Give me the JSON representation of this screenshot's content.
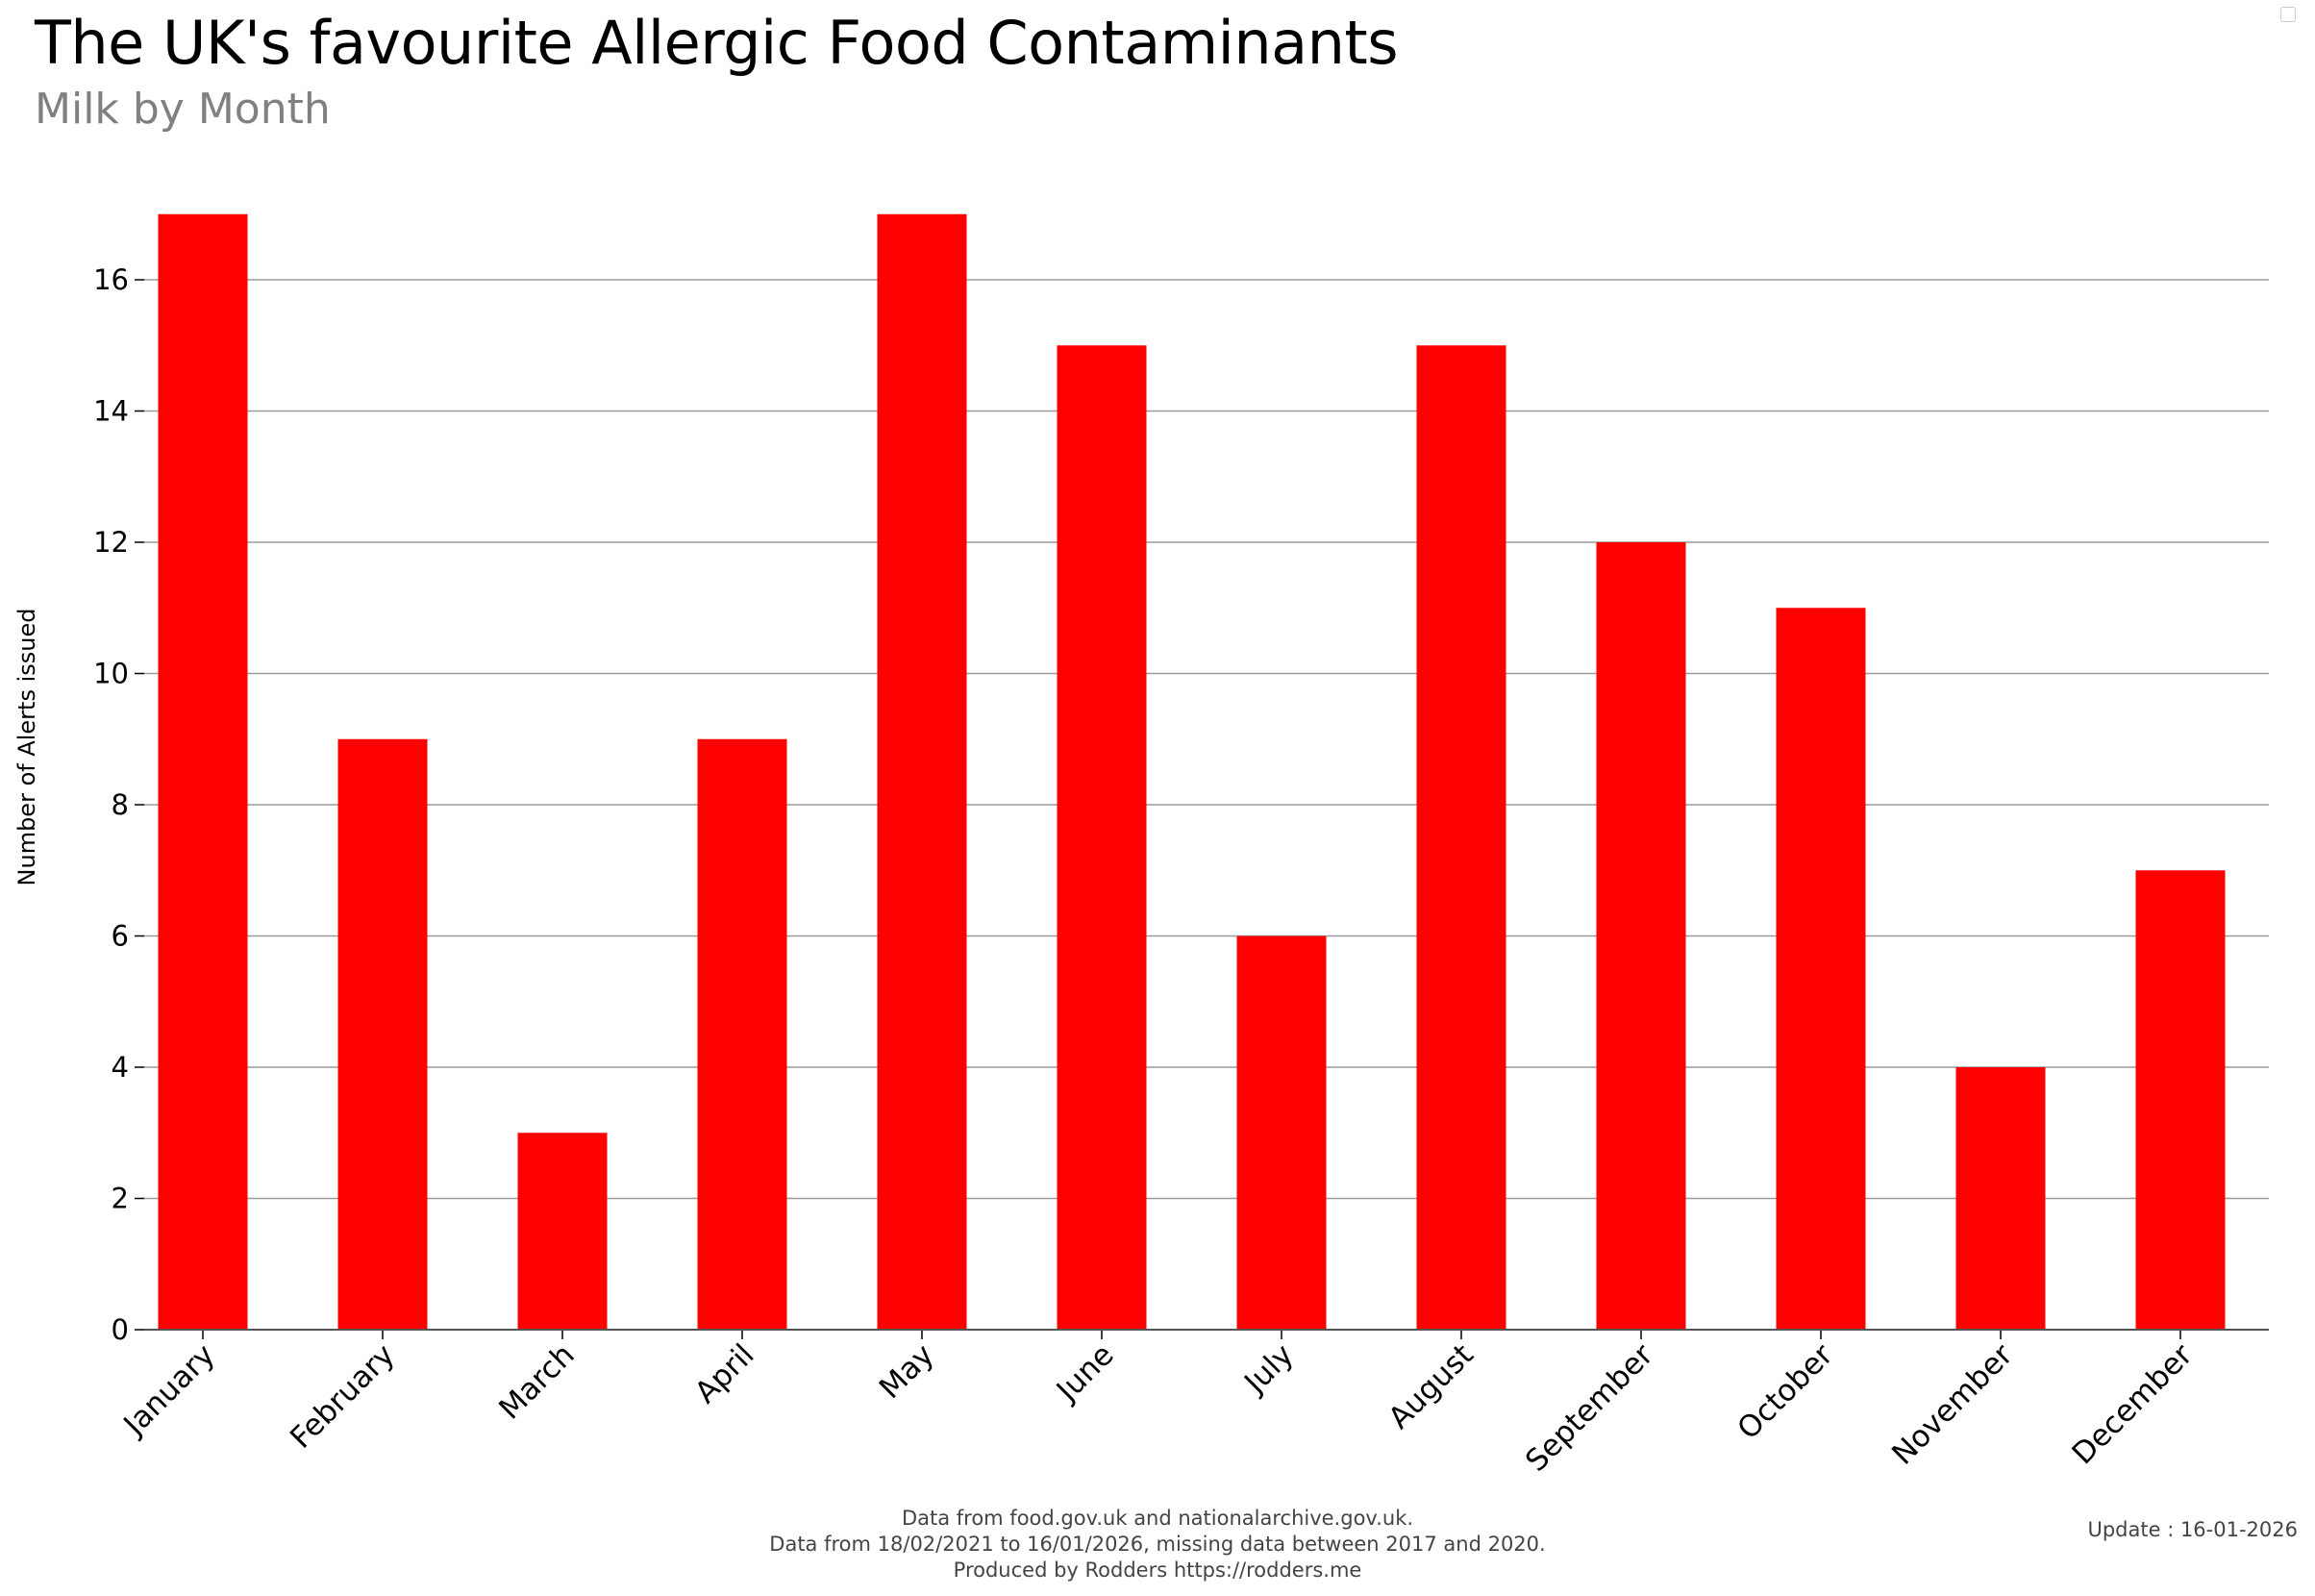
{
  "title": "The UK's favourite Allergic Food Contaminants",
  "subtitle": "Milk by Month",
  "footer": {
    "line1": "Data from food.gov.uk and nationalarchive.gov.uk.",
    "line2": "Data from 18/02/2021 to 16/01/2026, missing data between 2017 and 2020.",
    "line3": "Produced by Rodders https://rodders.me"
  },
  "update": "Update : 16-01-2026",
  "chart_data": {
    "type": "bar",
    "categories": [
      "January",
      "February",
      "March",
      "April",
      "May",
      "June",
      "July",
      "August",
      "September",
      "October",
      "November",
      "December"
    ],
    "values": [
      17,
      9,
      3,
      9,
      17,
      15,
      6,
      15,
      12,
      11,
      4,
      7
    ],
    "title": "The UK's favourite Allergic Food Contaminants",
    "subtitle": "Milk by Month",
    "xlabel": "",
    "ylabel": "Number of Alerts issued",
    "ylim": [
      0,
      17
    ],
    "yticks": [
      0,
      2,
      4,
      6,
      8,
      10,
      12,
      14,
      16
    ],
    "grid": "horizontal",
    "bar_color": "#ff0000"
  }
}
